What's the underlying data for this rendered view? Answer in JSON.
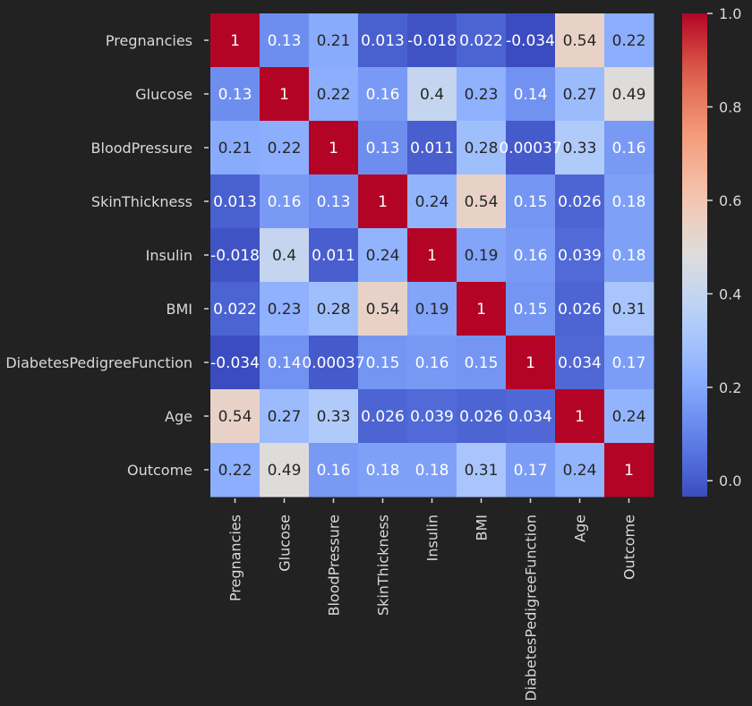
{
  "chart_data": {
    "type": "heatmap",
    "title": "",
    "xlabel": "",
    "ylabel": "",
    "colormap": "coolwarm",
    "vmin": -0.034,
    "vmax": 1.0,
    "labels": [
      "Pregnancies",
      "Glucose",
      "BloodPressure",
      "SkinThickness",
      "Insulin",
      "BMI",
      "DiabetesPedigreeFunction",
      "Age",
      "Outcome"
    ],
    "values": [
      [
        1,
        0.13,
        0.21,
        0.013,
        -0.018,
        0.022,
        -0.034,
        0.54,
        0.22
      ],
      [
        0.13,
        1,
        0.22,
        0.16,
        0.4,
        0.23,
        0.14,
        0.27,
        0.49
      ],
      [
        0.21,
        0.22,
        1,
        0.13,
        0.011,
        0.28,
        0.00037,
        0.33,
        0.16
      ],
      [
        0.013,
        0.16,
        0.13,
        1,
        0.24,
        0.54,
        0.15,
        0.026,
        0.18
      ],
      [
        -0.018,
        0.4,
        0.011,
        0.24,
        1,
        0.19,
        0.16,
        0.039,
        0.18
      ],
      [
        0.022,
        0.23,
        0.28,
        0.54,
        0.19,
        1,
        0.15,
        0.026,
        0.31
      ],
      [
        -0.034,
        0.14,
        0.00037,
        0.15,
        0.16,
        0.15,
        1,
        0.034,
        0.17
      ],
      [
        0.54,
        0.27,
        0.33,
        0.026,
        0.039,
        0.026,
        0.034,
        1,
        0.24
      ],
      [
        0.22,
        0.49,
        0.16,
        0.18,
        0.18,
        0.31,
        0.17,
        0.24,
        1
      ]
    ],
    "annotations": [
      [
        "1",
        "0.13",
        "0.21",
        "0.013",
        "-0.018",
        "0.022",
        "-0.034",
        "0.54",
        "0.22"
      ],
      [
        "0.13",
        "1",
        "0.22",
        "0.16",
        "0.4",
        "0.23",
        "0.14",
        "0.27",
        "0.49"
      ],
      [
        "0.21",
        "0.22",
        "1",
        "0.13",
        "0.011",
        "0.28",
        "0.00037",
        "0.33",
        "0.16"
      ],
      [
        "0.013",
        "0.16",
        "0.13",
        "1",
        "0.24",
        "0.54",
        "0.15",
        "0.026",
        "0.18"
      ],
      [
        "-0.018",
        "0.4",
        "0.011",
        "0.24",
        "1",
        "0.19",
        "0.16",
        "0.039",
        "0.18"
      ],
      [
        "0.022",
        "0.23",
        "0.28",
        "0.54",
        "0.19",
        "1",
        "0.15",
        "0.026",
        "0.31"
      ],
      [
        "-0.034",
        "0.14",
        "0.00037",
        "0.15",
        "0.16",
        "0.15",
        "1",
        "0.034",
        "0.17"
      ],
      [
        "0.54",
        "0.27",
        "0.33",
        "0.026",
        "0.039",
        "0.026",
        "0.034",
        "1",
        "0.24"
      ],
      [
        "0.22",
        "0.49",
        "0.16",
        "0.18",
        "0.18",
        "0.31",
        "0.17",
        "0.24",
        "1"
      ]
    ],
    "colorbar": {
      "ticks": [
        0.0,
        0.2,
        0.4,
        0.6,
        0.8,
        1.0
      ],
      "tick_labels": [
        "0.0",
        "0.2",
        "0.4",
        "0.6",
        "0.8",
        "1.0"
      ]
    },
    "grid": false,
    "legend": "colorbar-right"
  },
  "theme": {
    "background": "#222222",
    "label_color": "#d9d9d9",
    "tick_color": "#d9d9d9"
  }
}
